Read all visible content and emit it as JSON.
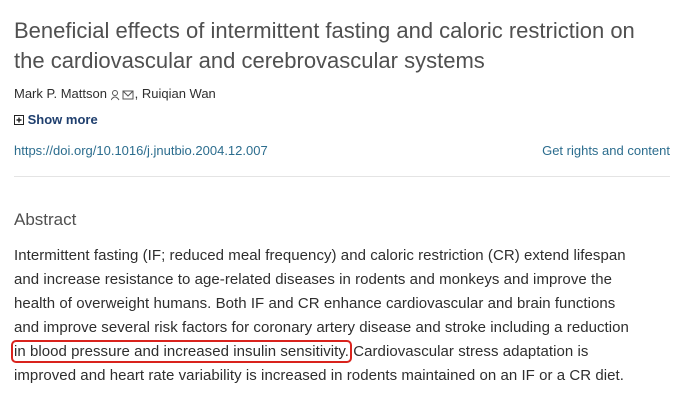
{
  "header": {
    "title_lines": [
      "Beneficial effects of intermittent fasting and caloric restriction on",
      "the cardiovascular and cerebrovascular systems"
    ],
    "authors": [
      "Mark P. Mattson",
      "Ruiqian Wan"
    ],
    "show_more": "Show more",
    "doi": "https://doi.org/10.1016/j.jnutbio.2004.12.007",
    "rights": "Get rights and content"
  },
  "abstract": {
    "heading": "Abstract",
    "lines": [
      "Intermittent fasting (IF; reduced meal frequency) and caloric restriction (CR) extend lifespan",
      "and increase resistance to age-related diseases in rodents and monkeys and improve the",
      "health of overweight humans. Both IF and CR enhance cardiovascular and brain functions",
      "and improve several risk factors for coronary artery disease and stroke including a reduction"
    ],
    "highlighted": "in blood pressure and increased insulin sensitivity.",
    "after_highlight": " Cardiovascular stress adaptation is",
    "last_line": "improved and heart rate variability is increased in rodents maintained on an IF or a CR diet."
  }
}
